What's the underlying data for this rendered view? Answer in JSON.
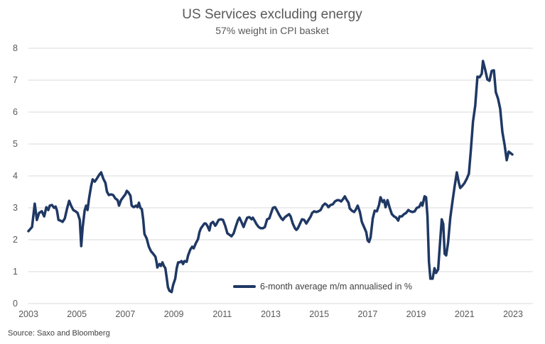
{
  "chart_data": {
    "type": "line",
    "title": "US Services excluding energy",
    "subtitle": "57% weight in CPI basket",
    "xlabel": "",
    "ylabel": "",
    "source": "Source: Saxo and Bloomberg",
    "xlim": [
      2003,
      2023.4
    ],
    "ylim": [
      0,
      8
    ],
    "x_ticks": [
      "2003",
      "2005",
      "2007",
      "2009",
      "2011",
      "2013",
      "2015",
      "2017",
      "2019",
      "2021",
      "2023"
    ],
    "y_ticks": [
      "0",
      "1",
      "2",
      "3",
      "4",
      "5",
      "6",
      "7",
      "8"
    ],
    "grid": true,
    "legend": {
      "position": "bottom-center",
      "label": "6-month average m/m annualised in %"
    },
    "line_color": "#1f3864",
    "grid_color": "#d9d9d9",
    "series": [
      {
        "name": "6-month average m/m annualised in %",
        "points": [
          [
            2003.0,
            2.27
          ],
          [
            2003.15,
            2.4
          ],
          [
            2003.26,
            3.13
          ],
          [
            2003.35,
            2.62
          ],
          [
            2003.44,
            2.84
          ],
          [
            2003.55,
            2.89
          ],
          [
            2003.65,
            2.73
          ],
          [
            2003.74,
            3.02
          ],
          [
            2003.82,
            2.93
          ],
          [
            2003.88,
            3.07
          ],
          [
            2003.97,
            3.09
          ],
          [
            2004.06,
            3.0
          ],
          [
            2004.12,
            3.04
          ],
          [
            2004.18,
            2.91
          ],
          [
            2004.24,
            2.62
          ],
          [
            2004.32,
            2.6
          ],
          [
            2004.41,
            2.56
          ],
          [
            2004.5,
            2.67
          ],
          [
            2004.59,
            2.96
          ],
          [
            2004.68,
            3.22
          ],
          [
            2004.76,
            3.07
          ],
          [
            2004.85,
            2.93
          ],
          [
            2004.94,
            2.89
          ],
          [
            2005.03,
            2.84
          ],
          [
            2005.12,
            2.62
          ],
          [
            2005.18,
            1.8
          ],
          [
            2005.24,
            2.4
          ],
          [
            2005.32,
            2.91
          ],
          [
            2005.38,
            3.07
          ],
          [
            2005.44,
            2.93
          ],
          [
            2005.5,
            3.29
          ],
          [
            2005.59,
            3.69
          ],
          [
            2005.65,
            3.89
          ],
          [
            2005.74,
            3.82
          ],
          [
            2005.82,
            3.91
          ],
          [
            2005.91,
            4.02
          ],
          [
            2006.0,
            4.11
          ],
          [
            2006.09,
            3.91
          ],
          [
            2006.18,
            3.78
          ],
          [
            2006.24,
            3.51
          ],
          [
            2006.32,
            3.4
          ],
          [
            2006.41,
            3.42
          ],
          [
            2006.5,
            3.4
          ],
          [
            2006.59,
            3.29
          ],
          [
            2006.68,
            3.24
          ],
          [
            2006.74,
            3.07
          ],
          [
            2006.82,
            3.24
          ],
          [
            2006.91,
            3.33
          ],
          [
            2007.0,
            3.42
          ],
          [
            2007.06,
            3.53
          ],
          [
            2007.12,
            3.49
          ],
          [
            2007.21,
            3.38
          ],
          [
            2007.26,
            3.07
          ],
          [
            2007.35,
            3.02
          ],
          [
            2007.44,
            3.07
          ],
          [
            2007.5,
            3.02
          ],
          [
            2007.56,
            3.16
          ],
          [
            2007.62,
            3.0
          ],
          [
            2007.68,
            2.96
          ],
          [
            2007.74,
            2.62
          ],
          [
            2007.79,
            2.18
          ],
          [
            2007.88,
            2.04
          ],
          [
            2007.97,
            1.78
          ],
          [
            2008.06,
            1.64
          ],
          [
            2008.15,
            1.56
          ],
          [
            2008.24,
            1.47
          ],
          [
            2008.29,
            1.29
          ],
          [
            2008.32,
            1.13
          ],
          [
            2008.41,
            1.24
          ],
          [
            2008.47,
            1.18
          ],
          [
            2008.53,
            1.29
          ],
          [
            2008.59,
            1.18
          ],
          [
            2008.65,
            1.11
          ],
          [
            2008.7,
            0.84
          ],
          [
            2008.76,
            0.51
          ],
          [
            2008.82,
            0.4
          ],
          [
            2008.91,
            0.36
          ],
          [
            2008.97,
            0.58
          ],
          [
            2009.06,
            0.78
          ],
          [
            2009.12,
            1.11
          ],
          [
            2009.18,
            1.29
          ],
          [
            2009.24,
            1.29
          ],
          [
            2009.32,
            1.33
          ],
          [
            2009.38,
            1.24
          ],
          [
            2009.44,
            1.33
          ],
          [
            2009.53,
            1.31
          ],
          [
            2009.59,
            1.51
          ],
          [
            2009.68,
            1.69
          ],
          [
            2009.76,
            1.78
          ],
          [
            2009.82,
            1.73
          ],
          [
            2009.91,
            1.89
          ],
          [
            2010.0,
            2.02
          ],
          [
            2010.06,
            2.24
          ],
          [
            2010.12,
            2.36
          ],
          [
            2010.18,
            2.42
          ],
          [
            2010.26,
            2.51
          ],
          [
            2010.32,
            2.51
          ],
          [
            2010.38,
            2.44
          ],
          [
            2010.47,
            2.29
          ],
          [
            2010.53,
            2.51
          ],
          [
            2010.62,
            2.56
          ],
          [
            2010.71,
            2.44
          ],
          [
            2010.76,
            2.49
          ],
          [
            2010.85,
            2.62
          ],
          [
            2010.94,
            2.64
          ],
          [
            2011.03,
            2.62
          ],
          [
            2011.12,
            2.44
          ],
          [
            2011.21,
            2.2
          ],
          [
            2011.29,
            2.16
          ],
          [
            2011.38,
            2.11
          ],
          [
            2011.47,
            2.2
          ],
          [
            2011.56,
            2.42
          ],
          [
            2011.65,
            2.62
          ],
          [
            2011.71,
            2.69
          ],
          [
            2011.79,
            2.56
          ],
          [
            2011.88,
            2.4
          ],
          [
            2011.94,
            2.53
          ],
          [
            2012.03,
            2.69
          ],
          [
            2012.12,
            2.71
          ],
          [
            2012.21,
            2.64
          ],
          [
            2012.26,
            2.69
          ],
          [
            2012.35,
            2.58
          ],
          [
            2012.41,
            2.49
          ],
          [
            2012.5,
            2.4
          ],
          [
            2012.59,
            2.36
          ],
          [
            2012.68,
            2.36
          ],
          [
            2012.76,
            2.4
          ],
          [
            2012.85,
            2.64
          ],
          [
            2012.94,
            2.67
          ],
          [
            2013.0,
            2.8
          ],
          [
            2013.09,
            3.0
          ],
          [
            2013.18,
            3.02
          ],
          [
            2013.26,
            2.91
          ],
          [
            2013.35,
            2.78
          ],
          [
            2013.44,
            2.67
          ],
          [
            2013.5,
            2.62
          ],
          [
            2013.59,
            2.71
          ],
          [
            2013.68,
            2.76
          ],
          [
            2013.76,
            2.8
          ],
          [
            2013.82,
            2.73
          ],
          [
            2013.91,
            2.51
          ],
          [
            2014.0,
            2.36
          ],
          [
            2014.06,
            2.31
          ],
          [
            2014.12,
            2.36
          ],
          [
            2014.21,
            2.51
          ],
          [
            2014.29,
            2.64
          ],
          [
            2014.38,
            2.62
          ],
          [
            2014.47,
            2.51
          ],
          [
            2014.56,
            2.62
          ],
          [
            2014.65,
            2.73
          ],
          [
            2014.71,
            2.84
          ],
          [
            2014.79,
            2.89
          ],
          [
            2014.88,
            2.87
          ],
          [
            2014.97,
            2.89
          ],
          [
            2015.06,
            2.93
          ],
          [
            2015.15,
            3.07
          ],
          [
            2015.24,
            3.13
          ],
          [
            2015.32,
            3.09
          ],
          [
            2015.38,
            3.02
          ],
          [
            2015.47,
            3.09
          ],
          [
            2015.56,
            3.11
          ],
          [
            2015.65,
            3.2
          ],
          [
            2015.74,
            3.24
          ],
          [
            2015.82,
            3.24
          ],
          [
            2015.91,
            3.2
          ],
          [
            2016.0,
            3.29
          ],
          [
            2016.06,
            3.36
          ],
          [
            2016.12,
            3.27
          ],
          [
            2016.21,
            3.16
          ],
          [
            2016.26,
            2.98
          ],
          [
            2016.35,
            2.91
          ],
          [
            2016.44,
            2.87
          ],
          [
            2016.5,
            2.93
          ],
          [
            2016.59,
            3.07
          ],
          [
            2016.68,
            2.87
          ],
          [
            2016.76,
            2.56
          ],
          [
            2016.85,
            2.4
          ],
          [
            2016.94,
            2.24
          ],
          [
            2017.0,
            1.98
          ],
          [
            2017.06,
            1.93
          ],
          [
            2017.12,
            2.07
          ],
          [
            2017.21,
            2.67
          ],
          [
            2017.29,
            2.91
          ],
          [
            2017.38,
            2.89
          ],
          [
            2017.47,
            3.09
          ],
          [
            2017.53,
            3.33
          ],
          [
            2017.62,
            3.18
          ],
          [
            2017.68,
            3.24
          ],
          [
            2017.74,
            3.02
          ],
          [
            2017.82,
            3.24
          ],
          [
            2017.91,
            3.0
          ],
          [
            2018.0,
            2.8
          ],
          [
            2018.09,
            2.73
          ],
          [
            2018.18,
            2.69
          ],
          [
            2018.26,
            2.6
          ],
          [
            2018.32,
            2.73
          ],
          [
            2018.41,
            2.73
          ],
          [
            2018.5,
            2.8
          ],
          [
            2018.59,
            2.84
          ],
          [
            2018.68,
            2.93
          ],
          [
            2018.76,
            2.89
          ],
          [
            2018.85,
            2.87
          ],
          [
            2018.94,
            2.89
          ],
          [
            2019.03,
            3.0
          ],
          [
            2019.12,
            3.02
          ],
          [
            2019.21,
            3.16
          ],
          [
            2019.26,
            3.07
          ],
          [
            2019.35,
            3.36
          ],
          [
            2019.41,
            3.33
          ],
          [
            2019.47,
            2.73
          ],
          [
            2019.53,
            1.31
          ],
          [
            2019.59,
            0.78
          ],
          [
            2019.68,
            0.78
          ],
          [
            2019.76,
            1.11
          ],
          [
            2019.82,
            0.96
          ],
          [
            2019.91,
            1.07
          ],
          [
            2020.0,
            2.04
          ],
          [
            2020.06,
            2.64
          ],
          [
            2020.12,
            2.49
          ],
          [
            2020.18,
            1.56
          ],
          [
            2020.24,
            1.51
          ],
          [
            2020.32,
            1.91
          ],
          [
            2020.41,
            2.69
          ],
          [
            2020.5,
            3.2
          ],
          [
            2020.59,
            3.67
          ],
          [
            2020.68,
            4.11
          ],
          [
            2020.76,
            3.8
          ],
          [
            2020.82,
            3.62
          ],
          [
            2020.91,
            3.69
          ],
          [
            2021.0,
            3.78
          ],
          [
            2021.09,
            3.91
          ],
          [
            2021.18,
            4.07
          ],
          [
            2021.26,
            4.82
          ],
          [
            2021.35,
            5.71
          ],
          [
            2021.44,
            6.2
          ],
          [
            2021.53,
            7.11
          ],
          [
            2021.62,
            7.09
          ],
          [
            2021.71,
            7.2
          ],
          [
            2021.76,
            7.6
          ],
          [
            2021.85,
            7.33
          ],
          [
            2021.94,
            7.02
          ],
          [
            2022.03,
            6.98
          ],
          [
            2022.12,
            7.29
          ],
          [
            2022.21,
            7.31
          ],
          [
            2022.29,
            6.62
          ],
          [
            2022.38,
            6.42
          ],
          [
            2022.47,
            6.11
          ],
          [
            2022.56,
            5.38
          ],
          [
            2022.65,
            4.98
          ],
          [
            2022.74,
            4.49
          ],
          [
            2022.82,
            4.76
          ],
          [
            2022.91,
            4.71
          ],
          [
            2022.97,
            4.67
          ]
        ]
      }
    ]
  }
}
